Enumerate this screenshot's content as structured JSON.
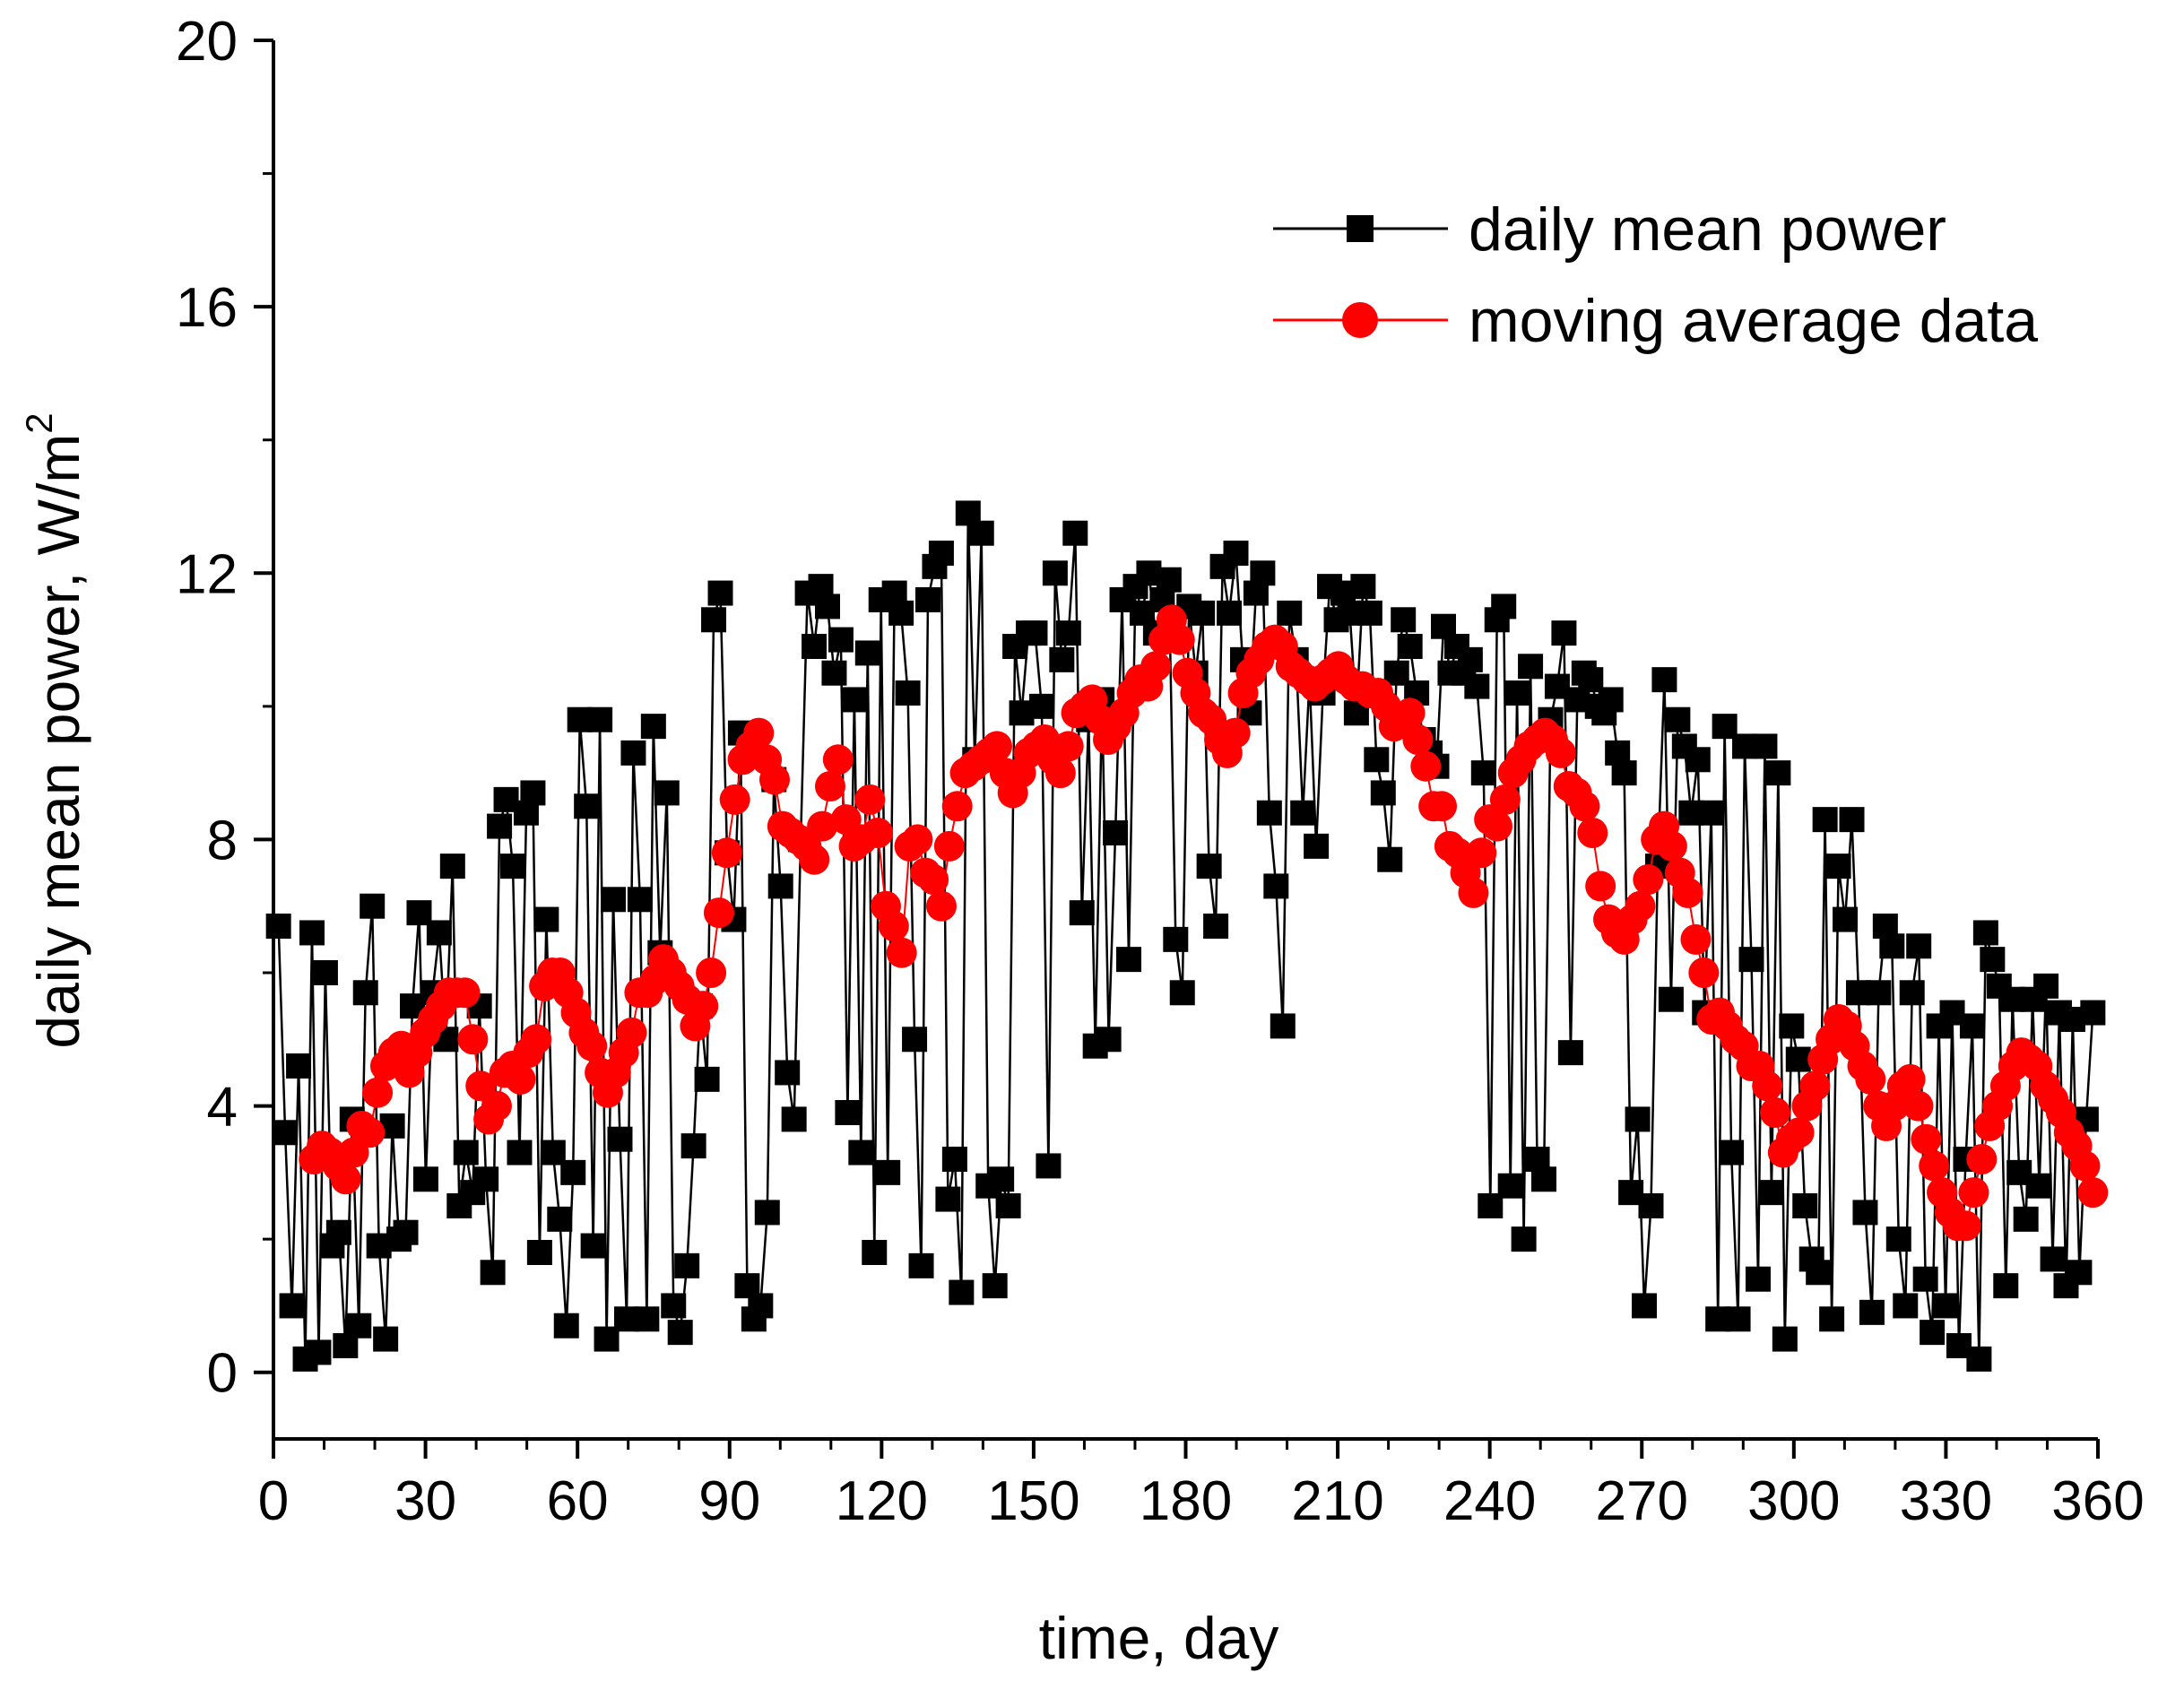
{
  "chart_data": {
    "type": "line",
    "title": "",
    "xlabel": "time, day",
    "ylabel_main": "daily mean power, W/m",
    "ylabel_sup": "2",
    "xlim": [
      0,
      360
    ],
    "ylim": [
      0,
      20
    ],
    "x_ticks": [
      0,
      30,
      60,
      90,
      120,
      150,
      180,
      210,
      240,
      270,
      300,
      330,
      360
    ],
    "x_tick_labels": [
      "0",
      "30",
      "60",
      "90",
      "120",
      "150",
      "180",
      "210",
      "240",
      "270",
      "300",
      "330",
      "360"
    ],
    "y_ticks": [
      0,
      4,
      8,
      12,
      16,
      20
    ],
    "y_tick_labels": [
      "0",
      "4",
      "8",
      "12",
      "16",
      "20"
    ],
    "legend_position": "top-right",
    "grid": false,
    "series": [
      {
        "name": "daily mean power",
        "color": "#000000",
        "marker": "square",
        "values": [
          6.7,
          3.6,
          1.0,
          4.6,
          0.2,
          6.6,
          0.3,
          6.0,
          1.9,
          2.1,
          0.4,
          3.8,
          0.7,
          5.7,
          7.0,
          1.9,
          0.5,
          3.7,
          2.0,
          2.1,
          5.5,
          6.9,
          2.9,
          5.7,
          6.6,
          5.0,
          7.6,
          2.5,
          3.3,
          2.7,
          5.5,
          2.9,
          1.5,
          8.2,
          8.6,
          7.6,
          3.3,
          8.4,
          8.7,
          1.8,
          6.8,
          3.3,
          2.3,
          0.7,
          3.0,
          9.8,
          8.5,
          1.9,
          9.8,
          0.5,
          7.1,
          3.5,
          0.8,
          9.3,
          7.1,
          0.8,
          9.7,
          6.3,
          8.7,
          1.0,
          0.6,
          1.6,
          3.4,
          5.5,
          4.4,
          11.3,
          11.7,
          7.8,
          6.8,
          9.6,
          1.3,
          0.8,
          1.0,
          2.4,
          8.9,
          7.3,
          4.5,
          3.8,
          8.0,
          11.7,
          10.9,
          11.8,
          11.5,
          10.5,
          11.0,
          3.9,
          10.1,
          3.3,
          10.8,
          1.8,
          11.6,
          3.0,
          11.7,
          11.4,
          10.2,
          5.0,
          1.6,
          11.6,
          12.1,
          12.3,
          2.6,
          3.2,
          1.2,
          12.9,
          9.2,
          12.6,
          2.8,
          1.3,
          2.9,
          2.5,
          10.9,
          9.9,
          11.1,
          11.1,
          10.0,
          3.1,
          12.0,
          10.7,
          11.1,
          12.6,
          6.9,
          9.8,
          4.9,
          10.1,
          5.0,
          8.1,
          11.6,
          6.2,
          11.8,
          11.4,
          12.0,
          11.1,
          11.6,
          11.9,
          6.5,
          5.7,
          11.5,
          10.5,
          11.4,
          7.6,
          6.7,
          12.1,
          11.4,
          12.3,
          10.7,
          9.9,
          11.7,
          12.0,
          8.4,
          7.3,
          5.2,
          11.4,
          10.7,
          8.4,
          10.4,
          7.9,
          10.2,
          11.8,
          11.3,
          11.7,
          11.4,
          9.9,
          11.8,
          11.4,
          9.2,
          8.7,
          7.7,
          10.5,
          11.3,
          10.9,
          10.2,
          9.5,
          9.3,
          9.1,
          11.2,
          10.5,
          10.9,
          10.5,
          10.7,
          10.3,
          9.0,
          2.5,
          11.3,
          11.5,
          2.8,
          10.2,
          2.0,
          10.6,
          3.2,
          2.9,
          9.8,
          10.3,
          11.1,
          4.8,
          10.1,
          10.5,
          10.4,
          10.0,
          9.9,
          10.1,
          9.3,
          9.0,
          2.7,
          3.8,
          1.0,
          2.5,
          7.6,
          10.4,
          5.6,
          9.8,
          9.4,
          8.4,
          9.2,
          5.4,
          8.4,
          0.8,
          9.7,
          3.3,
          0.8,
          9.4,
          6.2,
          1.4,
          9.4,
          2.7,
          9.0,
          0.5,
          5.2,
          4.7,
          2.5,
          1.7,
          1.5,
          8.3,
          0.8,
          7.6,
          6.8,
          8.3,
          5.7,
          2.4,
          0.9,
          5.7,
          6.7,
          6.4,
          2.0,
          1.0,
          5.7,
          6.4,
          1.4,
          0.6,
          5.2,
          1.0,
          5.4,
          0.4,
          3.2,
          5.2,
          0.2,
          6.6,
          6.2,
          5.8,
          1.3,
          5.6,
          3.0,
          2.3,
          5.6,
          2.8,
          5.8,
          1.7,
          5.4,
          1.3,
          5.3,
          1.5,
          3.8,
          5.4
        ]
      },
      {
        "name": "moving average data",
        "color": "#ff0000",
        "marker": "circle",
        "values": [
          3.2,
          3.4,
          3.3,
          3.1,
          2.9,
          3.3,
          3.7,
          3.6,
          4.2,
          4.6,
          4.8,
          4.9,
          4.5,
          4.8,
          5.1,
          5.3,
          5.5,
          5.7,
          5.7,
          5.7,
          5.0,
          4.3,
          3.8,
          4.0,
          4.5,
          4.6,
          4.4,
          4.8,
          5.0,
          5.8,
          6.0,
          6.0,
          5.7,
          5.4,
          5.1,
          4.9,
          4.5,
          4.2,
          4.5,
          4.8,
          5.1,
          5.7,
          5.7,
          5.9,
          6.2,
          6.0,
          5.8,
          5.6,
          5.2,
          5.5,
          6.0,
          6.9,
          7.8,
          8.6,
          9.2,
          9.4,
          9.6,
          9.2,
          8.9,
          8.2,
          8.1,
          8.0,
          7.9,
          7.7,
          8.2,
          8.8,
          9.2,
          8.3,
          7.9,
          8.0,
          8.6,
          8.1,
          7.0,
          6.7,
          6.3,
          7.9,
          8.0,
          7.5,
          7.4,
          7.0,
          7.9,
          8.5,
          9.0,
          9.1,
          9.2,
          9.3,
          9.4,
          9.0,
          8.7,
          9.0,
          9.3,
          9.4,
          9.5,
          9.2,
          9.0,
          9.4,
          9.9,
          10.0,
          10.1,
          9.8,
          9.5,
          9.7,
          9.9,
          10.2,
          10.4,
          10.3,
          10.6,
          11.0,
          11.3,
          11.0,
          10.5,
          10.2,
          9.9,
          9.8,
          9.5,
          9.3,
          9.6,
          10.2,
          10.5,
          10.7,
          10.9,
          11.0,
          10.9,
          10.6,
          10.5,
          10.4,
          10.3,
          10.4,
          10.5,
          10.6,
          10.4,
          10.3,
          10.3,
          10.2,
          10.2,
          10.0,
          9.7,
          9.8,
          9.9,
          9.5,
          9.1,
          8.5,
          8.5,
          7.9,
          7.8,
          7.5,
          7.2,
          7.8,
          8.3,
          8.2,
          8.6,
          9.0,
          9.2,
          9.4,
          9.5,
          9.6,
          9.5,
          9.3,
          8.8,
          8.7,
          8.5,
          8.1,
          7.3,
          6.8,
          6.6,
          6.5,
          6.8,
          7.0,
          7.4,
          8.0,
          8.2,
          7.9,
          7.5,
          7.2,
          6.5,
          6.0,
          5.3,
          5.4,
          5.2,
          5.0,
          4.9,
          4.6,
          4.6,
          4.3,
          3.9,
          3.3,
          3.5,
          3.6,
          4.0,
          4.3,
          4.7,
          5.0,
          5.3,
          5.2,
          4.9,
          4.6,
          4.4,
          4.0,
          3.7,
          4.0,
          4.3,
          4.4,
          4.0,
          3.5,
          3.1,
          2.7,
          2.4,
          2.2,
          2.2,
          2.7,
          3.2,
          3.7,
          4.0,
          4.3,
          4.6,
          4.8,
          4.7,
          4.6,
          4.3,
          4.1,
          3.9,
          3.6,
          3.4,
          3.1,
          2.7
        ]
      }
    ]
  }
}
